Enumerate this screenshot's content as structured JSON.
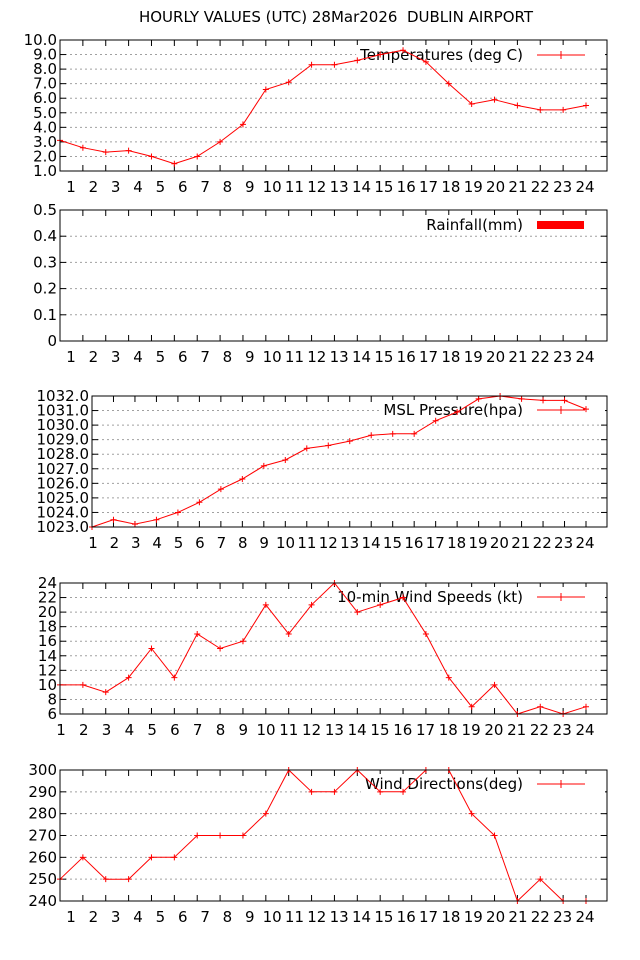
{
  "title": "HOURLY VALUES (UTC) 28Mar2026  DUBLIN AIRPORT",
  "series_color": "#ff0000",
  "chart_data": [
    {
      "type": "line",
      "legend": "Temperatures (deg C)",
      "legend_placement": "top-right",
      "ylim": [
        1.0,
        10.0
      ],
      "yticks": [
        1,
        2,
        3,
        4,
        5,
        6,
        7,
        8,
        9,
        10
      ],
      "ytick_labels": [
        "1.0",
        "2.0",
        "3.0",
        "4.0",
        "5.0",
        "6.0",
        "7.0",
        "8.0",
        "9.0",
        "10.0"
      ],
      "x_labels": [
        "1",
        "2",
        "3",
        "4",
        "5",
        "6",
        "7",
        "8",
        "9",
        "10",
        "11",
        "12",
        "13",
        "14",
        "15",
        "16",
        "17",
        "18",
        "19",
        "20",
        "21",
        "22",
        "23",
        "24"
      ],
      "values": [
        3.1,
        2.6,
        2.3,
        2.4,
        2.0,
        1.5,
        2.0,
        3.0,
        4.2,
        6.6,
        7.1,
        8.3,
        8.3,
        8.6,
        9.0,
        9.3,
        8.5,
        7.0,
        5.6,
        5.9,
        5.5,
        5.2,
        5.2,
        5.5
      ],
      "grid": true
    },
    {
      "type": "bar",
      "legend": "Rainfall(mm)",
      "legend_placement": "top-right",
      "ylim": [
        0,
        0.5
      ],
      "yticks": [
        0,
        0.1,
        0.2,
        0.3,
        0.4,
        0.5
      ],
      "ytick_labels": [
        "0",
        "0.1",
        "0.2",
        "0.3",
        "0.4",
        "0.5"
      ],
      "x_labels": [
        "1",
        "2",
        "3",
        "4",
        "5",
        "6",
        "7",
        "8",
        "9",
        "10",
        "11",
        "12",
        "13",
        "14",
        "15",
        "16",
        "17",
        "18",
        "19",
        "20",
        "21",
        "22",
        "23",
        "24"
      ],
      "values": [
        0,
        0,
        0,
        0,
        0,
        0,
        0,
        0,
        0,
        0,
        0,
        0,
        0,
        0,
        0,
        0,
        0,
        0,
        0,
        0,
        0,
        0,
        0,
        0
      ],
      "grid": true
    },
    {
      "type": "line",
      "legend": "MSL Pressure(hpa)",
      "legend_placement": "top-right",
      "ylim": [
        1023.0,
        1032.0
      ],
      "yticks": [
        1023,
        1024,
        1025,
        1026,
        1027,
        1028,
        1029,
        1030,
        1031,
        1032
      ],
      "ytick_labels": [
        "1023.0",
        "1024.0",
        "1025.0",
        "1026.0",
        "1027.0",
        "1028.0",
        "1029.0",
        "1030.0",
        "1031.0",
        "1032.0"
      ],
      "x_labels": [
        "1",
        "2",
        "3",
        "4",
        "5",
        "6",
        "7",
        "8",
        "9",
        "10",
        "11",
        "12",
        "13",
        "14",
        "15",
        "16",
        "17",
        "18",
        "19",
        "20",
        "21",
        "22",
        "23",
        "24"
      ],
      "values": [
        1023.0,
        1023.5,
        1023.2,
        1023.5,
        1024.0,
        1024.7,
        1025.6,
        1026.3,
        1027.2,
        1027.6,
        1028.4,
        1028.6,
        1028.9,
        1029.3,
        1029.4,
        1029.4,
        1030.3,
        1030.9,
        1031.8,
        1032.0,
        1031.8,
        1031.7,
        1031.7,
        1031.1
      ],
      "grid": true
    },
    {
      "type": "line",
      "legend": "10-min Wind Speeds (kt)",
      "legend_placement": "top-right",
      "ylim": [
        6,
        24
      ],
      "yticks": [
        6,
        8,
        10,
        12,
        14,
        16,
        18,
        20,
        22,
        24
      ],
      "ytick_labels": [
        "6",
        "8",
        "10",
        "12",
        "14",
        "16",
        "18",
        "20",
        "22",
        "24"
      ],
      "x_labels": [
        "1",
        "2",
        "3",
        "4",
        "5",
        "6",
        "7",
        "8",
        "9",
        "10",
        "11",
        "12",
        "13",
        "14",
        "15",
        "16",
        "17",
        "18",
        "19",
        "20",
        "21",
        "22",
        "23",
        "24"
      ],
      "values": [
        10,
        10,
        9,
        11,
        15,
        11,
        17,
        15,
        16,
        21,
        17,
        21,
        24,
        20,
        21,
        22,
        17,
        11,
        7,
        10,
        6,
        7,
        6,
        7
      ],
      "grid": true
    },
    {
      "type": "line",
      "legend": "Wind Directions(deg)",
      "legend_placement": "top-right",
      "ylim": [
        240,
        300
      ],
      "yticks": [
        240,
        250,
        260,
        270,
        280,
        290,
        300
      ],
      "ytick_labels": [
        "240",
        "250",
        "260",
        "270",
        "280",
        "290",
        "300"
      ],
      "x_labels": [
        "1",
        "2",
        "3",
        "4",
        "5",
        "6",
        "7",
        "8",
        "9",
        "10",
        "11",
        "12",
        "13",
        "14",
        "15",
        "16",
        "17",
        "18",
        "19",
        "20",
        "21",
        "22",
        "23",
        "24"
      ],
      "values": [
        250,
        260,
        250,
        250,
        260,
        260,
        270,
        270,
        270,
        280,
        300,
        290,
        290,
        300,
        290,
        290,
        300,
        300,
        280,
        270,
        240,
        250,
        240,
        240
      ],
      "grid": true
    }
  ]
}
